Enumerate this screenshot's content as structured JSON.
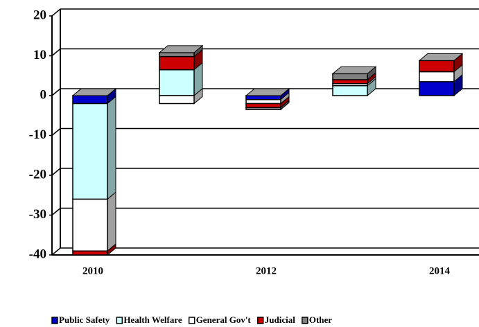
{
  "chart_data": {
    "type": "bar",
    "stacked": true,
    "categories": [
      "2010",
      null,
      "2012",
      null,
      "2014"
    ],
    "series": [
      {
        "name": "Public Safety",
        "color": "#0000cc",
        "values": [
          -2,
          0,
          -1,
          0,
          3.5
        ]
      },
      {
        "name": "Health  Welfare",
        "color": "#ccffff",
        "values": [
          -24,
          6.5,
          0,
          2.5,
          0
        ]
      },
      {
        "name": "General Gov't",
        "color": "#ffffff",
        "values": [
          -13,
          -2,
          -1,
          0.5,
          2.5
        ]
      },
      {
        "name": "Judicial",
        "color": "#cc0000",
        "values": [
          -1,
          3.3,
          -1,
          1,
          2.8
        ]
      },
      {
        "name": "Other",
        "color": "#808080",
        "values": [
          0,
          1,
          -0.5,
          1.5,
          0
        ]
      }
    ],
    "ylim": [
      -40,
      20
    ],
    "yticks": [
      -40,
      -30,
      -20,
      -10,
      0,
      10,
      20
    ],
    "grid": true,
    "legend": "bottom"
  }
}
